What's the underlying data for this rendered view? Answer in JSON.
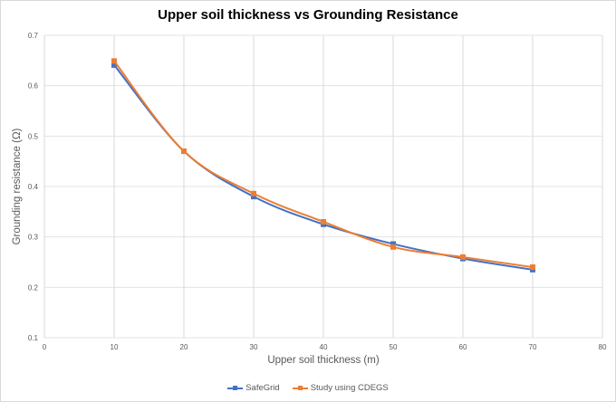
{
  "chart_data": {
    "type": "line",
    "title": "Upper soil thickness vs Grounding Resistance",
    "xlabel": "Upper soil thickness (m)",
    "ylabel": "Grounding resistance (Ω)",
    "xlim": [
      0,
      80
    ],
    "ylim": [
      0.1,
      0.7
    ],
    "x_ticks": [
      "0",
      "10",
      "20",
      "30",
      "40",
      "50",
      "60",
      "70",
      "80"
    ],
    "y_ticks": [
      "0.1",
      "0.2",
      "0.3",
      "0.4",
      "0.5",
      "0.6",
      "0.7"
    ],
    "grid": true,
    "legend_position": "bottom",
    "x": [
      10,
      20,
      30,
      40,
      50,
      60,
      70
    ],
    "series": [
      {
        "name": "SafeGrid",
        "color": "#4472c4",
        "values": [
          0.641,
          0.47,
          0.38,
          0.325,
          0.286,
          0.257,
          0.235
        ]
      },
      {
        "name": "Study using CDEGS",
        "color": "#ed7d31",
        "values": [
          0.649,
          0.47,
          0.386,
          0.33,
          0.28,
          0.26,
          0.24
        ]
      }
    ]
  }
}
